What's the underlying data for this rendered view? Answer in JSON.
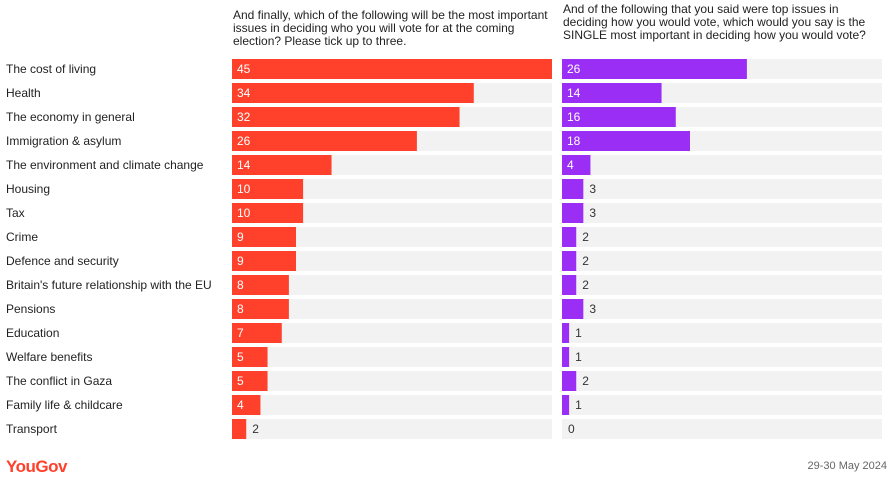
{
  "questions": {
    "q1": "And finally, which of the following will be the most important issues in deciding who you will vote for at the coming election? Please tick up to three.",
    "q2": "And of the following that you said were top issues in deciding how you would vote, which would you say is the SINGLE most important in deciding how you would vote?"
  },
  "footer": {
    "brand": "YouGov",
    "date": "29-30 May 2024"
  },
  "colors": {
    "q1_bar": "#ff412c",
    "q2_bar": "#9b2ef5",
    "track": "#f2f2f2"
  },
  "chart_data": {
    "type": "bar",
    "orientation": "horizontal",
    "categories": [
      "The cost of living",
      "Health",
      "The economy in general",
      "Immigration & asylum",
      "The environment and climate change",
      "Housing",
      "Tax",
      "Crime",
      "Defence and security",
      "Britain's future relationship with the EU",
      "Pensions",
      "Education",
      "Welfare benefits",
      "The conflict in Gaza",
      "Family life & childcare",
      "Transport"
    ],
    "series": [
      {
        "values": [
          45,
          34,
          32,
          26,
          14,
          10,
          10,
          9,
          9,
          8,
          8,
          7,
          5,
          5,
          4,
          2
        ]
      },
      {
        "values": [
          26,
          14,
          16,
          18,
          4,
          3,
          3,
          2,
          2,
          2,
          3,
          1,
          1,
          2,
          1,
          0
        ]
      }
    ],
    "xlim": [
      0,
      45
    ],
    "grid": false,
    "legend": "none"
  }
}
